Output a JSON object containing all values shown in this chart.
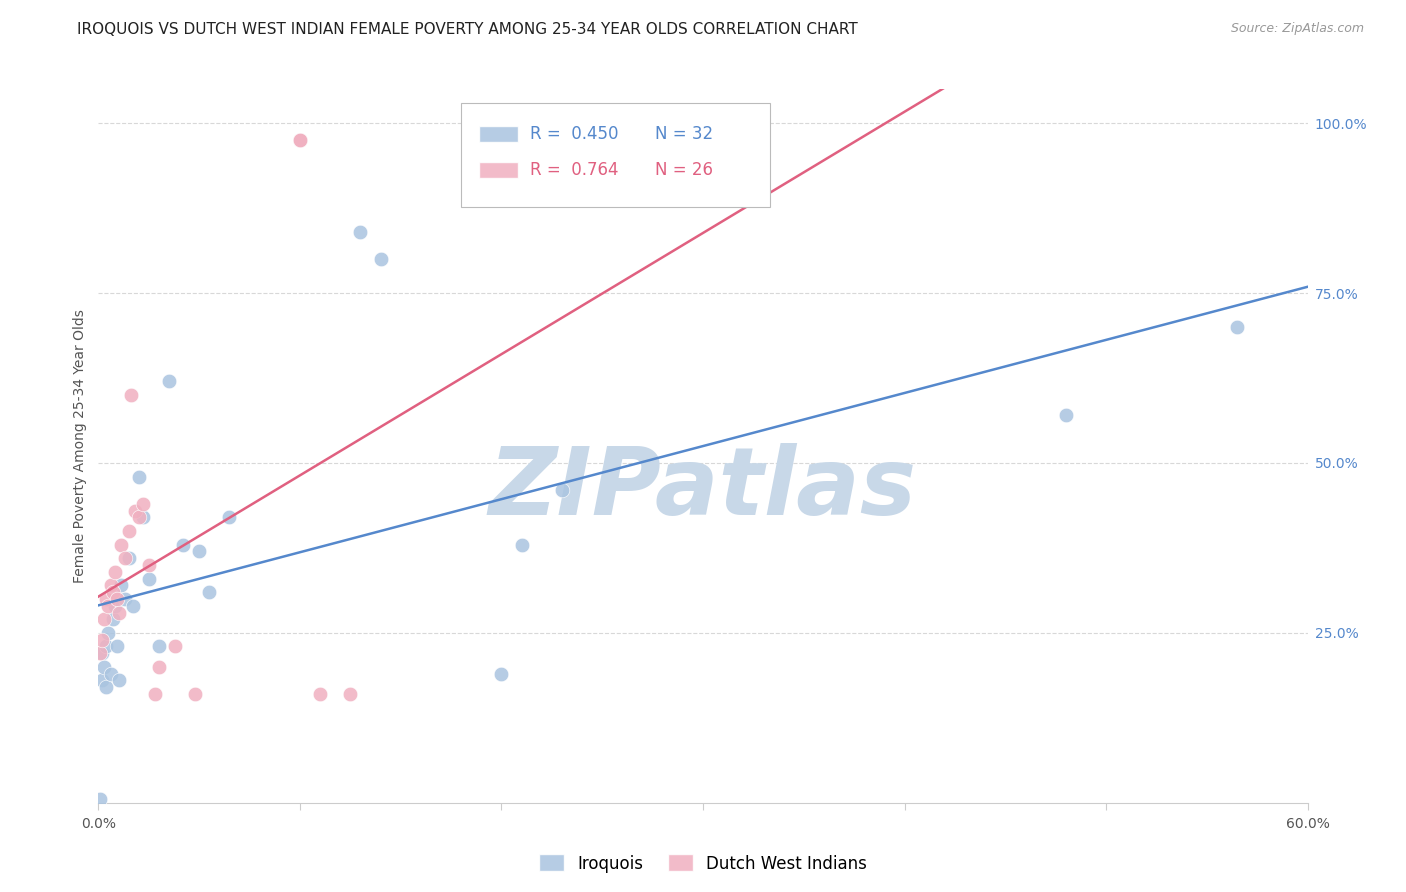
{
  "title": "IROQUOIS VS DUTCH WEST INDIAN FEMALE POVERTY AMONG 25-34 YEAR OLDS CORRELATION CHART",
  "source": "Source: ZipAtlas.com",
  "ylabel": "Female Poverty Among 25-34 Year Olds",
  "xlim": [
    0.0,
    0.6
  ],
  "ylim": [
    0.0,
    1.05
  ],
  "watermark": "ZIPatlas",
  "watermark_color": "#c8d8e8",
  "background_color": "#ffffff",
  "grid_color": "#d8d8d8",
  "iroquois_color": "#aac4e0",
  "dutch_color": "#f0b0c0",
  "iroquois_line_color": "#5588cc",
  "dutch_line_color": "#e06080",
  "iroquois_R": 0.45,
  "iroquois_N": 32,
  "dutch_R": 0.764,
  "dutch_N": 26,
  "iroquois_x": [
    0.001,
    0.002,
    0.002,
    0.003,
    0.004,
    0.004,
    0.005,
    0.006,
    0.007,
    0.008,
    0.009,
    0.01,
    0.011,
    0.013,
    0.015,
    0.017,
    0.02,
    0.022,
    0.025,
    0.03,
    0.035,
    0.042,
    0.05,
    0.055,
    0.065,
    0.13,
    0.14,
    0.21,
    0.23,
    0.2,
    0.48,
    0.565
  ],
  "iroquois_y": [
    0.005,
    0.18,
    0.22,
    0.2,
    0.23,
    0.17,
    0.25,
    0.19,
    0.27,
    0.29,
    0.23,
    0.18,
    0.32,
    0.3,
    0.36,
    0.29,
    0.48,
    0.42,
    0.33,
    0.23,
    0.62,
    0.38,
    0.37,
    0.31,
    0.42,
    0.84,
    0.8,
    0.38,
    0.46,
    0.19,
    0.57,
    0.7
  ],
  "dutch_x": [
    0.001,
    0.002,
    0.003,
    0.004,
    0.005,
    0.006,
    0.007,
    0.008,
    0.009,
    0.01,
    0.011,
    0.013,
    0.015,
    0.016,
    0.018,
    0.02,
    0.022,
    0.025,
    0.028,
    0.03,
    0.038,
    0.048,
    0.1,
    0.1,
    0.11,
    0.125
  ],
  "dutch_y": [
    0.22,
    0.24,
    0.27,
    0.3,
    0.29,
    0.32,
    0.31,
    0.34,
    0.3,
    0.28,
    0.38,
    0.36,
    0.4,
    0.6,
    0.43,
    0.42,
    0.44,
    0.35,
    0.16,
    0.2,
    0.23,
    0.16,
    0.975,
    0.975,
    0.16,
    0.16
  ]
}
